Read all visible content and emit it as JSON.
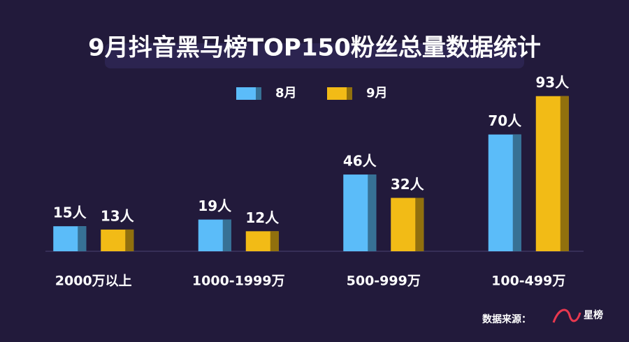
{
  "chart_data": {
    "type": "bar",
    "title": "9月抖音黑马榜TOP150粉丝总量数据统计",
    "categories": [
      "2000万以上",
      "1000-1999万",
      "500-999万",
      "100-499万"
    ],
    "series": [
      {
        "name": "8月",
        "color": "#5bbcf9",
        "values": [
          15,
          19,
          46,
          70
        ],
        "value_labels": [
          "15人",
          "19人",
          "46人",
          "70人"
        ]
      },
      {
        "name": "9月",
        "color": "#f2bb16",
        "values": [
          13,
          12,
          32,
          93
        ],
        "value_labels": [
          "13人",
          "12人",
          "32人",
          "93人"
        ]
      }
    ],
    "ylim": [
      0,
      100
    ],
    "source_label": "数据来源：",
    "source_logo": "星榜"
  }
}
